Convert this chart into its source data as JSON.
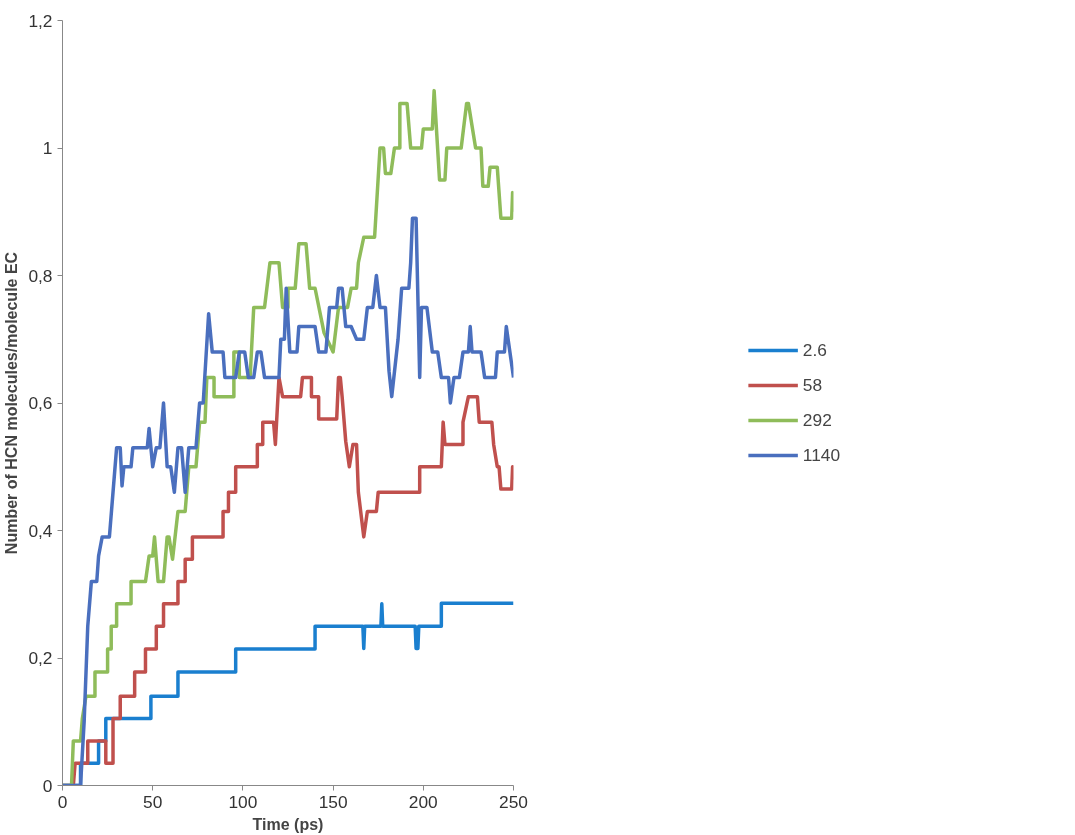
{
  "chart_data": {
    "type": "line",
    "xlabel": "Time (ps)",
    "ylabel": "Number of HCN molecules/molecule EC",
    "xlim": [
      0,
      250
    ],
    "xticks": [
      0,
      50,
      100,
      150,
      200,
      250
    ],
    "ylim": [
      0,
      1.2
    ],
    "yticks": [
      0,
      {
        "value": 0.2,
        "label": "0,2"
      },
      {
        "value": 0.4,
        "label": "0,4"
      },
      {
        "value": 0.6,
        "label": "0,6"
      },
      {
        "value": 0.8,
        "label": "0,8"
      },
      1,
      {
        "value": 1.2,
        "label": "1,2"
      }
    ],
    "grid": false,
    "legend": "right",
    "line_style": "solid",
    "marker": "none",
    "series": [
      {
        "name": "2.6",
        "color": "#1a7fcf",
        "x": [
          0,
          10,
          10,
          20,
          20,
          24,
          24,
          49,
          49,
          64,
          64,
          96,
          96,
          140,
          140,
          166.5,
          167,
          167.5,
          176.5,
          177,
          177.5,
          195.5,
          196,
          197,
          197.5,
          210,
          210,
          250
        ],
        "values": [
          0,
          0,
          0.035,
          0.035,
          0.07,
          0.07,
          0.105,
          0.105,
          0.14,
          0.14,
          0.178,
          0.178,
          0.214,
          0.214,
          0.25,
          0.25,
          0.215,
          0.25,
          0.25,
          0.285,
          0.25,
          0.25,
          0.215,
          0.215,
          0.25,
          0.25,
          0.286,
          0.286
        ]
      },
      {
        "name": "58",
        "color": "#c0504d",
        "x": [
          0,
          6,
          7,
          14,
          14,
          24,
          24,
          28,
          28,
          32,
          32,
          40,
          40,
          46,
          46,
          52,
          52,
          56,
          56,
          64,
          64,
          68,
          68,
          72,
          72,
          89,
          89,
          92,
          92,
          96,
          96,
          108,
          108,
          111,
          111,
          117,
          118,
          120,
          122,
          132,
          133,
          138,
          138,
          142,
          142,
          152,
          153,
          154,
          155,
          157,
          159,
          161,
          163,
          164,
          167,
          169,
          174,
          175,
          198,
          198,
          210,
          211,
          212,
          222,
          222,
          225,
          230,
          231,
          238,
          239,
          241,
          242,
          243,
          249,
          249.5,
          250
        ],
        "values": [
          0,
          0,
          0.035,
          0.035,
          0.07,
          0.07,
          0.035,
          0.035,
          0.105,
          0.105,
          0.14,
          0.14,
          0.178,
          0.178,
          0.214,
          0.214,
          0.25,
          0.25,
          0.285,
          0.285,
          0.32,
          0.32,
          0.355,
          0.355,
          0.39,
          0.39,
          0.43,
          0.43,
          0.46,
          0.46,
          0.5,
          0.5,
          0.535,
          0.535,
          0.57,
          0.57,
          0.535,
          0.64,
          0.61,
          0.61,
          0.64,
          0.64,
          0.61,
          0.61,
          0.575,
          0.575,
          0.64,
          0.64,
          0.61,
          0.54,
          0.5,
          0.535,
          0.535,
          0.46,
          0.39,
          0.43,
          0.43,
          0.46,
          0.46,
          0.5,
          0.5,
          0.57,
          0.535,
          0.535,
          0.57,
          0.61,
          0.61,
          0.57,
          0.57,
          0.535,
          0.5,
          0.5,
          0.465,
          0.465,
          0.5,
          0.48
        ]
      },
      {
        "name": "292",
        "color": "#8fbc5a",
        "x": [
          0,
          5,
          6,
          10,
          11,
          13,
          18,
          18,
          25,
          25,
          27,
          27,
          30,
          30,
          38,
          38,
          46,
          48,
          50,
          51,
          53,
          56,
          58,
          59,
          61,
          64,
          68,
          70,
          74,
          76,
          79,
          80,
          84,
          84,
          95,
          95,
          98,
          98,
          104,
          106,
          112,
          115,
          120,
          122,
          125,
          125,
          129,
          131,
          135,
          137,
          140,
          145,
          150,
          153,
          158,
          160,
          163,
          164,
          167,
          173,
          176,
          178,
          179,
          182,
          184,
          187,
          187,
          191,
          193,
          199,
          200,
          205,
          206,
          209,
          212,
          213,
          221,
          224,
          225,
          229,
          232,
          233,
          236,
          237,
          241,
          243,
          249,
          249.5,
          250
        ],
        "values": [
          0,
          0,
          0.07,
          0.07,
          0.105,
          0.14,
          0.14,
          0.178,
          0.178,
          0.214,
          0.214,
          0.25,
          0.25,
          0.285,
          0.285,
          0.32,
          0.32,
          0.36,
          0.36,
          0.39,
          0.32,
          0.32,
          0.39,
          0.39,
          0.355,
          0.43,
          0.43,
          0.5,
          0.5,
          0.57,
          0.57,
          0.64,
          0.64,
          0.61,
          0.61,
          0.68,
          0.68,
          0.64,
          0.64,
          0.75,
          0.75,
          0.82,
          0.82,
          0.75,
          0.75,
          0.78,
          0.78,
          0.85,
          0.85,
          0.78,
          0.78,
          0.71,
          0.68,
          0.75,
          0.75,
          0.78,
          0.78,
          0.82,
          0.86,
          0.86,
          1.0,
          1.0,
          0.96,
          0.96,
          1.0,
          1.0,
          1.07,
          1.07,
          1.0,
          1.0,
          1.03,
          1.03,
          1.09,
          0.95,
          0.95,
          1.0,
          1.0,
          1.07,
          1.07,
          1.0,
          1.0,
          0.94,
          0.94,
          0.97,
          0.97,
          0.89,
          0.89,
          0.93,
          0.9
        ]
      },
      {
        "name": "1140",
        "color": "#4a6fbe",
        "x": [
          0,
          10,
          12,
          14,
          16,
          19,
          20,
          22,
          26,
          28,
          30,
          32,
          33,
          34,
          38,
          39,
          47,
          48,
          50,
          52,
          54,
          56,
          58,
          60,
          62,
          64,
          66,
          68,
          70,
          74,
          76,
          78,
          81,
          83,
          89,
          90,
          96,
          98,
          101,
          103,
          106,
          108,
          110,
          112,
          115,
          117,
          120,
          121,
          123,
          124,
          126,
          130,
          131,
          140,
          142,
          146,
          148,
          152,
          153,
          155,
          157,
          160,
          163,
          167,
          169,
          172,
          174,
          176,
          179,
          181,
          182.5,
          186,
          188,
          192,
          193,
          194,
          196,
          198,
          199,
          202,
          205,
          208,
          210,
          214,
          215,
          217,
          220,
          222,
          225,
          226,
          227,
          232,
          234,
          240,
          241,
          245,
          246,
          250
        ],
        "values": [
          0,
          0,
          0.1,
          0.25,
          0.32,
          0.32,
          0.36,
          0.39,
          0.39,
          0.46,
          0.53,
          0.53,
          0.47,
          0.5,
          0.5,
          0.53,
          0.53,
          0.56,
          0.5,
          0.53,
          0.53,
          0.6,
          0.5,
          0.5,
          0.46,
          0.53,
          0.53,
          0.46,
          0.53,
          0.53,
          0.6,
          0.6,
          0.74,
          0.68,
          0.68,
          0.64,
          0.64,
          0.68,
          0.68,
          0.64,
          0.64,
          0.68,
          0.68,
          0.64,
          0.64,
          0.64,
          0.64,
          0.7,
          0.7,
          0.78,
          0.68,
          0.68,
          0.72,
          0.72,
          0.68,
          0.68,
          0.75,
          0.75,
          0.78,
          0.78,
          0.72,
          0.72,
          0.7,
          0.7,
          0.75,
          0.75,
          0.8,
          0.75,
          0.75,
          0.65,
          0.61,
          0.7,
          0.78,
          0.78,
          0.82,
          0.89,
          0.89,
          0.64,
          0.75,
          0.75,
          0.68,
          0.68,
          0.64,
          0.64,
          0.6,
          0.64,
          0.64,
          0.68,
          0.68,
          0.72,
          0.68,
          0.68,
          0.64,
          0.64,
          0.68,
          0.68,
          0.72,
          0.64
        ]
      }
    ]
  }
}
